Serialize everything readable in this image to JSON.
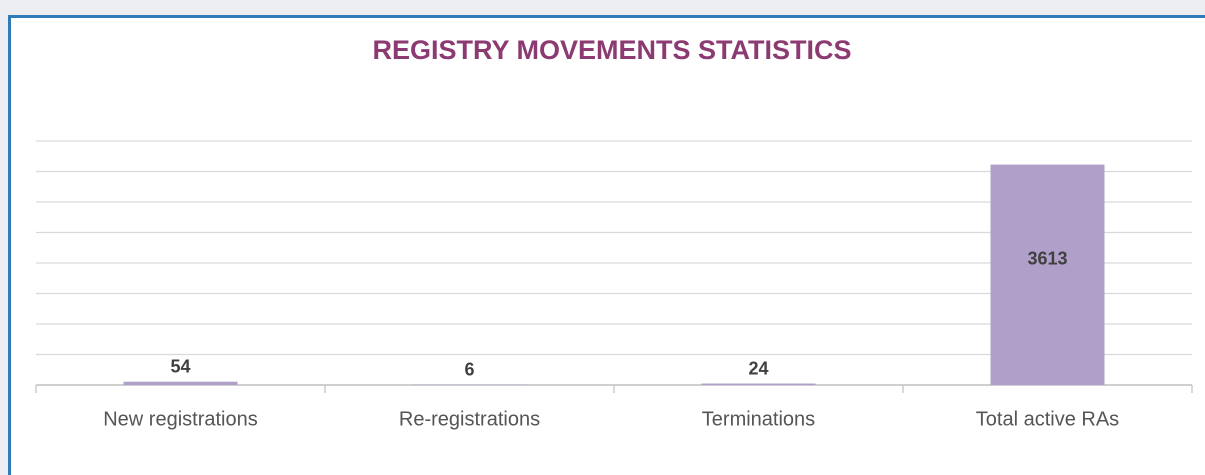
{
  "chart_data": {
    "type": "bar",
    "title": "REGISTRY MOVEMENTS STATISTICS",
    "categories": [
      "New registrations",
      "Re-registrations",
      "Terminations",
      "Total active RAs"
    ],
    "values": [
      54,
      6,
      24,
      3613
    ],
    "color": "#b09fc9",
    "ylim": [
      0,
      4000
    ],
    "yticks": [
      0,
      500,
      1000,
      1500,
      2000,
      2500,
      3000,
      3500,
      4000
    ],
    "grid": true
  }
}
